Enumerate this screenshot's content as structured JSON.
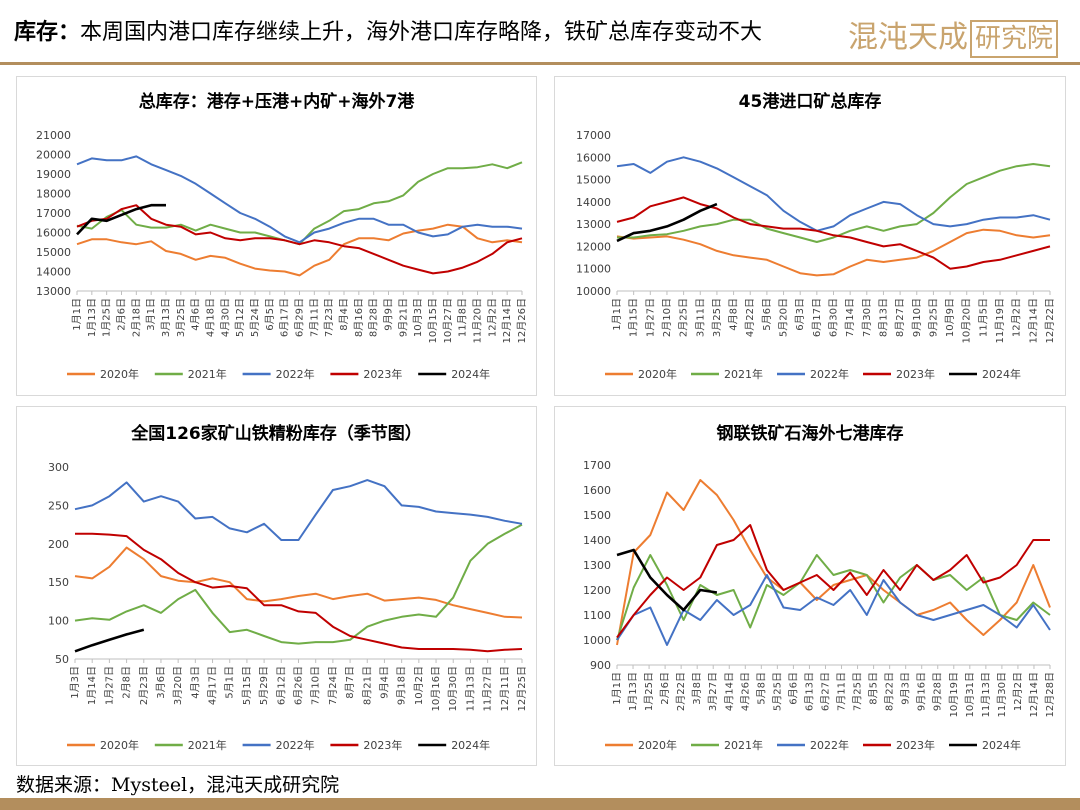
{
  "header": {
    "title_label": "库存：",
    "title_text": "本周国内港口库存继续上升，海外港口库存略降，铁矿总库存变动不大",
    "logo_text": "混沌天成",
    "logo_box_text": "研究院"
  },
  "footer": {
    "source": "数据来源：Mysteel，混沌天成研究院"
  },
  "colors": {
    "accent": "#b38e5d",
    "s2020": "#ed7d31",
    "s2021": "#70ad47",
    "s2022": "#4472c4",
    "s2023": "#c00000",
    "s2024": "#000000"
  },
  "chart_data": [
    {
      "type": "line",
      "title": "总库存：港存+压港+内矿+海外7港",
      "ylim": [
        13000,
        21000
      ],
      "yticks": [
        "13000",
        "14000",
        "15000",
        "16000",
        "17000",
        "18000",
        "19000",
        "20000",
        "21000"
      ],
      "xticks": [
        "1月1日",
        "1月13日",
        "1月25日",
        "2月6日",
        "2月18日",
        "3月1日",
        "3月13日",
        "3月25日",
        "4月6日",
        "4月18日",
        "4月30日",
        "5月12日",
        "5月24日",
        "6月5日",
        "6月17日",
        "6月29日",
        "7月11日",
        "7月23日",
        "8月4日",
        "8月16日",
        "8月28日",
        "9月9日",
        "9月21日",
        "10月3日",
        "10月15日",
        "10月27日",
        "11月8日",
        "11月20日",
        "12月2日",
        "12月14日",
        "12月26日"
      ],
      "legend": "bottom",
      "grid": false,
      "series": [
        {
          "name": "2020年",
          "color": "#ed7d31",
          "values": [
            15400,
            15650,
            15650,
            15500,
            15400,
            15550,
            15050,
            14900,
            14600,
            14800,
            14700,
            14400,
            14150,
            14050,
            14000,
            13800,
            14300,
            14600,
            15400,
            15700,
            15700,
            15600,
            15950,
            16100,
            16200,
            16400,
            16300,
            15700,
            15500,
            15600,
            15500
          ]
        },
        {
          "name": "2021年",
          "color": "#70ad47",
          "values": [
            16350,
            16200,
            16800,
            17150,
            16400,
            16250,
            16250,
            16400,
            16100,
            16400,
            16200,
            16000,
            16000,
            15800,
            15600,
            15400,
            16200,
            16600,
            17100,
            17200,
            17500,
            17600,
            17900,
            18600,
            19000,
            19300,
            19300,
            19350,
            19500,
            19300,
            19600
          ]
        },
        {
          "name": "2022年",
          "color": "#4472c4",
          "values": [
            19500,
            19800,
            19700,
            19700,
            19900,
            19500,
            19200,
            18900,
            18500,
            18000,
            17500,
            17000,
            16700,
            16300,
            15800,
            15500,
            16000,
            16200,
            16500,
            16700,
            16700,
            16400,
            16400,
            16000,
            15800,
            15900,
            16300,
            16400,
            16300,
            16300,
            16200
          ]
        },
        {
          "name": "2023年",
          "color": "#c00000",
          "values": [
            16300,
            16600,
            16700,
            17200,
            17400,
            16700,
            16400,
            16300,
            15900,
            16000,
            15700,
            15600,
            15700,
            15700,
            15600,
            15400,
            15600,
            15500,
            15300,
            15200,
            14900,
            14600,
            14300,
            14100,
            13900,
            14000,
            14200,
            14500,
            14900,
            15500,
            15700
          ]
        },
        {
          "name": "2024年",
          "color": "#000000",
          "values": [
            15900,
            16700,
            16600,
            16900,
            17200,
            17400,
            17400
          ]
        }
      ]
    },
    {
      "type": "line",
      "title": "45港进口矿总库存",
      "ylim": [
        10000,
        17000
      ],
      "yticks": [
        "10000",
        "11000",
        "12000",
        "13000",
        "14000",
        "15000",
        "16000",
        "17000"
      ],
      "xticks": [
        "1月1日",
        "1月15日",
        "1月27日",
        "2月10日",
        "2月25日",
        "3月11日",
        "3月25日",
        "4月8日",
        "4月22日",
        "5月6日",
        "5月20日",
        "6月3日",
        "6月17日",
        "6月30日",
        "7月14日",
        "7月30日",
        "8月13日",
        "8月27日",
        "9月10日",
        "9月25日",
        "10月9日",
        "10月20日",
        "11月5日",
        "11月19日",
        "12月2日",
        "12月14日",
        "12月22日"
      ],
      "legend": "bottom",
      "grid": false,
      "series": [
        {
          "name": "2020年",
          "color": "#ed7d31",
          "values": [
            12450,
            12350,
            12400,
            12450,
            12300,
            12100,
            11800,
            11600,
            11500,
            11400,
            11100,
            10800,
            10700,
            10750,
            11100,
            11400,
            11300,
            11400,
            11500,
            11800,
            12200,
            12600,
            12750,
            12700,
            12500,
            12400,
            12500
          ]
        },
        {
          "name": "2021年",
          "color": "#70ad47",
          "values": [
            12400,
            12400,
            12500,
            12550,
            12700,
            12900,
            13000,
            13200,
            13200,
            12800,
            12600,
            12400,
            12200,
            12400,
            12700,
            12900,
            12700,
            12900,
            13000,
            13500,
            14200,
            14800,
            15100,
            15400,
            15600,
            15700,
            15600
          ]
        },
        {
          "name": "2022年",
          "color": "#4472c4",
          "values": [
            15600,
            15700,
            15300,
            15800,
            16000,
            15800,
            15500,
            15100,
            14700,
            14300,
            13600,
            13100,
            12700,
            12900,
            13400,
            13700,
            14000,
            13900,
            13400,
            13000,
            12900,
            13000,
            13200,
            13300,
            13300,
            13400,
            13200
          ]
        },
        {
          "name": "2023年",
          "color": "#c00000",
          "values": [
            13100,
            13300,
            13800,
            14000,
            14200,
            13900,
            13700,
            13300,
            13000,
            12900,
            12800,
            12800,
            12700,
            12500,
            12400,
            12200,
            12000,
            12100,
            11800,
            11500,
            11000,
            11100,
            11300,
            11400,
            11600,
            11800,
            12000
          ]
        },
        {
          "name": "2024年",
          "color": "#000000",
          "values": [
            12250,
            12600,
            12700,
            12900,
            13200,
            13600,
            13900
          ]
        }
      ]
    },
    {
      "type": "line",
      "title": "全国126家矿山铁精粉库存（季节图）",
      "ylim": [
        50,
        300
      ],
      "yticks": [
        "50",
        "100",
        "150",
        "200",
        "250",
        "300"
      ],
      "xticks": [
        "1月3日",
        "1月14日",
        "1月27日",
        "2月8日",
        "2月23日",
        "3月6日",
        "3月20日",
        "4月3日",
        "4月17日",
        "5月1日",
        "5月15日",
        "5月29日",
        "6月12日",
        "6月26日",
        "7月10日",
        "7月24日",
        "8月7日",
        "8月21日",
        "9月4日",
        "9月18日",
        "10月2日",
        "10月16日",
        "10月30日",
        "11月13日",
        "11月27日",
        "12月11日",
        "12月25日"
      ],
      "legend": "bottom",
      "grid": false,
      "series": [
        {
          "name": "2020年",
          "color": "#ed7d31",
          "values": [
            158,
            155,
            170,
            195,
            180,
            158,
            152,
            150,
            155,
            150,
            128,
            125,
            128,
            132,
            135,
            128,
            132,
            135,
            126,
            128,
            130,
            127,
            120,
            115,
            110,
            105,
            104
          ]
        },
        {
          "name": "2021年",
          "color": "#70ad47",
          "values": [
            100,
            103,
            101,
            112,
            120,
            110,
            128,
            140,
            110,
            85,
            88,
            80,
            72,
            70,
            72,
            72,
            75,
            92,
            100,
            105,
            108,
            105,
            130,
            178,
            200,
            213,
            225
          ]
        },
        {
          "name": "2022年",
          "color": "#4472c4",
          "values": [
            245,
            250,
            262,
            280,
            255,
            262,
            255,
            233,
            235,
            220,
            215,
            226,
            205,
            205,
            238,
            270,
            275,
            283,
            275,
            250,
            248,
            242,
            240,
            238,
            235,
            230,
            226
          ]
        },
        {
          "name": "2023年",
          "color": "#c00000",
          "values": [
            213,
            213,
            212,
            210,
            192,
            180,
            162,
            150,
            143,
            145,
            142,
            120,
            120,
            112,
            110,
            92,
            80,
            75,
            70,
            65,
            63,
            63,
            63,
            62,
            60,
            62,
            63
          ]
        },
        {
          "name": "2024年",
          "color": "#000000",
          "values": [
            60,
            68,
            75,
            82,
            88
          ]
        }
      ]
    },
    {
      "type": "line",
      "title": "钢联铁矿石海外七港库存",
      "ylim": [
        900,
        1700
      ],
      "yticks": [
        "900",
        "1000",
        "1100",
        "1200",
        "1300",
        "1400",
        "1500",
        "1600",
        "1700"
      ],
      "xticks": [
        "1月1日",
        "1月13日",
        "1月25日",
        "2月6日",
        "2月22日",
        "3月8日",
        "3月27日",
        "4月14日",
        "4月26日",
        "5月8日",
        "5月25日",
        "6月6日",
        "6月13日",
        "6月27日",
        "7月11日",
        "7月25日",
        "8月5日",
        "8月22日",
        "9月3日",
        "9月16日",
        "9月28日",
        "10月19日",
        "10月31日",
        "11月13日",
        "11月30日",
        "12月2日",
        "12月14日",
        "12月28日"
      ],
      "legend": "bottom",
      "grid": false,
      "series": [
        {
          "name": "2020年",
          "color": "#ed7d31",
          "values": [
            980,
            1350,
            1420,
            1590,
            1520,
            1640,
            1580,
            1480,
            1360,
            1250,
            1200,
            1230,
            1160,
            1220,
            1240,
            1260,
            1200,
            1150,
            1100,
            1120,
            1150,
            1080,
            1020,
            1080,
            1150,
            1300,
            1130
          ]
        },
        {
          "name": "2021年",
          "color": "#70ad47",
          "values": [
            1000,
            1210,
            1340,
            1220,
            1080,
            1220,
            1180,
            1200,
            1050,
            1220,
            1180,
            1230,
            1340,
            1260,
            1280,
            1260,
            1150,
            1250,
            1300,
            1240,
            1260,
            1200,
            1250,
            1100,
            1080,
            1150,
            1100
          ]
        },
        {
          "name": "2022年",
          "color": "#4472c4",
          "values": [
            1000,
            1100,
            1130,
            980,
            1120,
            1080,
            1160,
            1100,
            1140,
            1260,
            1130,
            1120,
            1170,
            1140,
            1200,
            1100,
            1240,
            1150,
            1100,
            1080,
            1100,
            1120,
            1140,
            1100,
            1050,
            1140,
            1040
          ]
        },
        {
          "name": "2023年",
          "color": "#c00000",
          "values": [
            1010,
            1100,
            1180,
            1250,
            1200,
            1250,
            1380,
            1400,
            1460,
            1280,
            1200,
            1230,
            1260,
            1200,
            1270,
            1180,
            1280,
            1200,
            1300,
            1240,
            1280,
            1340,
            1230,
            1250,
            1300,
            1400,
            1400
          ]
        },
        {
          "name": "2024年",
          "color": "#000000",
          "values": [
            1340,
            1360,
            1250,
            1180,
            1120,
            1200,
            1190
          ]
        }
      ]
    }
  ]
}
